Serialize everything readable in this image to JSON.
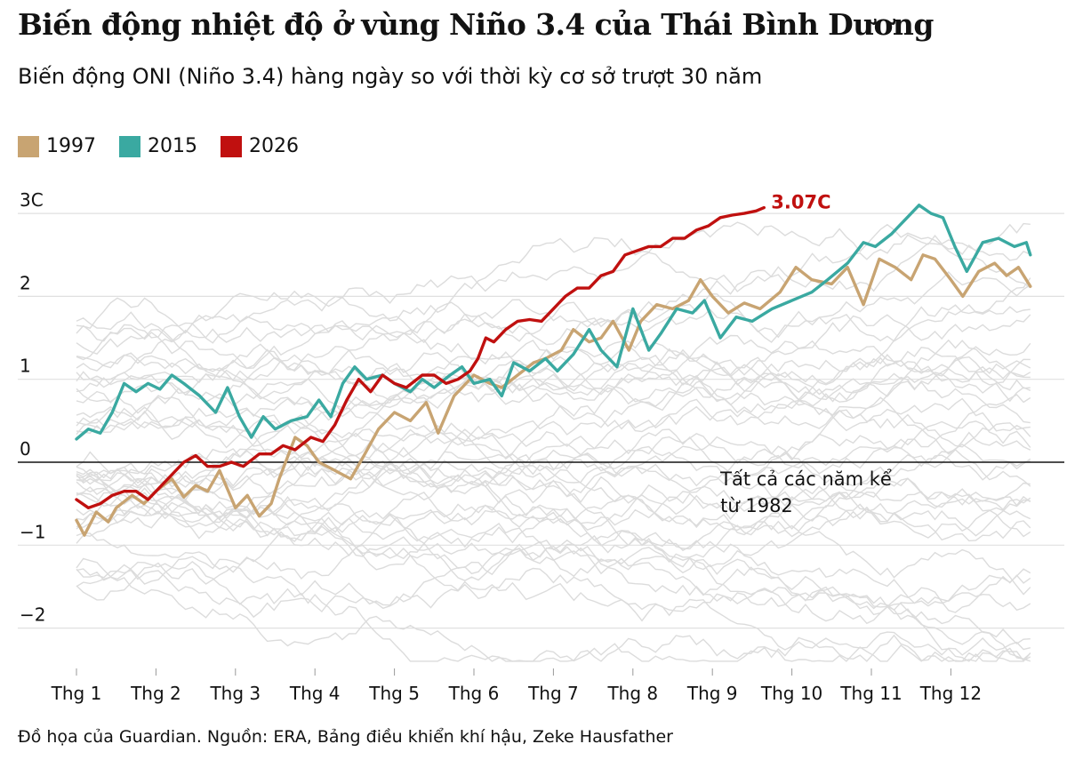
{
  "title": "Biến động nhiệt độ ở vùng Niño 3.4 của Thái Bình Dương",
  "subtitle": "Biến động ONI (Niño 3.4) hàng ngày so với thời kỳ cơ sở trượt 30 năm",
  "source": "Đồ họa của Guardian. Nguồn: ERA, Bảng điều khiển khí hậu, Zeke Hausfather",
  "colors": {
    "y1997": "#c8a472",
    "y2015": "#3aa9a1",
    "y2026": "#c0100f",
    "background_years": "#dcdcdc",
    "gridline": "#e0e0e0",
    "zero_line": "#121212"
  },
  "legend": [
    {
      "label": "1997",
      "color": "#c8a472"
    },
    {
      "label": "2015",
      "color": "#3aa9a1"
    },
    {
      "label": "2026",
      "color": "#c0100f"
    }
  ],
  "chart_data": {
    "type": "line",
    "x_unit": "month",
    "xlim": [
      1,
      13
    ],
    "ylim": [
      -2.4,
      3.3
    ],
    "y_ticks": [
      -2,
      -1,
      0,
      1,
      2,
      3
    ],
    "y_tick_labels": [
      "−2",
      "−1",
      "0",
      "1",
      "2",
      "3C"
    ],
    "x_ticks": [
      1,
      2,
      3,
      4,
      5,
      6,
      7,
      8,
      9,
      10,
      11,
      12
    ],
    "x_tick_labels": [
      "Thg 1",
      "Thg 2",
      "Thg 3",
      "Thg 4",
      "Thg 5",
      "Thg 6",
      "Thg 7",
      "Thg 8",
      "Thg 9",
      "Thg 10",
      "Thg 11",
      "Thg 12"
    ],
    "grid": true,
    "annotation": {
      "lines": [
        "Tất cả các năm kể",
        "từ 1982"
      ],
      "x": 9.1,
      "y": -0.28
    },
    "end_label": {
      "text": "3.07C",
      "series": "2026"
    },
    "series": [
      {
        "name": "1997",
        "x": [
          1.0,
          1.1,
          1.25,
          1.4,
          1.5,
          1.7,
          1.85,
          2.0,
          2.2,
          2.35,
          2.5,
          2.65,
          2.8,
          3.0,
          3.15,
          3.3,
          3.45,
          3.55,
          3.75,
          3.9,
          4.05,
          4.25,
          4.45,
          4.6,
          4.8,
          5.0,
          5.2,
          5.4,
          5.55,
          5.75,
          6.0,
          6.2,
          6.35,
          6.55,
          6.75,
          6.9,
          7.1,
          7.25,
          7.45,
          7.6,
          7.75,
          7.95,
          8.1,
          8.3,
          8.5,
          8.7,
          8.85,
          9.0,
          9.2,
          9.4,
          9.6,
          9.85,
          10.05,
          10.25,
          10.5,
          10.7,
          10.9,
          11.1,
          11.3,
          11.5,
          11.65,
          11.8,
          12.0,
          12.15,
          12.35,
          12.55,
          12.7,
          12.85,
          13.0
        ],
        "y": [
          -0.7,
          -0.88,
          -0.6,
          -0.72,
          -0.55,
          -0.4,
          -0.5,
          -0.35,
          -0.2,
          -0.42,
          -0.28,
          -0.35,
          -0.1,
          -0.55,
          -0.4,
          -0.65,
          -0.5,
          -0.2,
          0.3,
          0.2,
          0.0,
          -0.1,
          -0.2,
          0.05,
          0.4,
          0.6,
          0.5,
          0.72,
          0.35,
          0.8,
          1.05,
          0.95,
          0.9,
          1.05,
          1.2,
          1.25,
          1.35,
          1.6,
          1.45,
          1.5,
          1.7,
          1.35,
          1.7,
          1.9,
          1.85,
          1.95,
          2.2,
          2.0,
          1.8,
          1.92,
          1.85,
          2.05,
          2.35,
          2.2,
          2.15,
          2.35,
          1.9,
          2.45,
          2.35,
          2.2,
          2.5,
          2.45,
          2.2,
          2.0,
          2.3,
          2.4,
          2.25,
          2.35,
          2.12
        ]
      },
      {
        "name": "2015",
        "x": [
          1.0,
          1.15,
          1.3,
          1.45,
          1.6,
          1.75,
          1.9,
          2.05,
          2.2,
          2.35,
          2.55,
          2.75,
          2.9,
          3.05,
          3.2,
          3.35,
          3.5,
          3.7,
          3.9,
          4.05,
          4.2,
          4.35,
          4.5,
          4.65,
          4.85,
          5.0,
          5.2,
          5.35,
          5.5,
          5.7,
          5.85,
          6.0,
          6.2,
          6.35,
          6.5,
          6.7,
          6.9,
          7.05,
          7.25,
          7.45,
          7.6,
          7.8,
          8.0,
          8.2,
          8.35,
          8.55,
          8.75,
          8.9,
          9.1,
          9.3,
          9.5,
          9.75,
          10.0,
          10.25,
          10.45,
          10.7,
          10.9,
          11.05,
          11.25,
          11.4,
          11.6,
          11.75,
          11.9,
          12.05,
          12.2,
          12.4,
          12.6,
          12.8,
          12.95,
          13.0
        ],
        "y": [
          0.28,
          0.4,
          0.35,
          0.6,
          0.95,
          0.85,
          0.95,
          0.88,
          1.05,
          0.95,
          0.8,
          0.6,
          0.9,
          0.55,
          0.3,
          0.55,
          0.4,
          0.5,
          0.55,
          0.75,
          0.55,
          0.95,
          1.15,
          1.0,
          1.05,
          0.95,
          0.85,
          1.0,
          0.9,
          1.05,
          1.15,
          0.95,
          1.0,
          0.8,
          1.2,
          1.1,
          1.25,
          1.1,
          1.3,
          1.6,
          1.35,
          1.15,
          1.85,
          1.35,
          1.55,
          1.85,
          1.8,
          1.95,
          1.5,
          1.75,
          1.7,
          1.85,
          1.95,
          2.05,
          2.2,
          2.4,
          2.65,
          2.6,
          2.75,
          2.9,
          3.1,
          3.0,
          2.95,
          2.6,
          2.3,
          2.65,
          2.7,
          2.6,
          2.65,
          2.5
        ]
      },
      {
        "name": "2026",
        "x": [
          1.0,
          1.15,
          1.3,
          1.45,
          1.6,
          1.75,
          1.9,
          2.05,
          2.2,
          2.35,
          2.5,
          2.65,
          2.8,
          2.95,
          3.1,
          3.3,
          3.45,
          3.6,
          3.75,
          3.95,
          4.1,
          4.25,
          4.4,
          4.55,
          4.7,
          4.85,
          5.0,
          5.15,
          5.35,
          5.5,
          5.65,
          5.8,
          5.95,
          6.05,
          6.15,
          6.25,
          6.4,
          6.55,
          6.7,
          6.85,
          7.0,
          7.15,
          7.3,
          7.45,
          7.6,
          7.75,
          7.9,
          8.05,
          8.2,
          8.35,
          8.5,
          8.65,
          8.8,
          8.95,
          9.1,
          9.25,
          9.4,
          9.55,
          9.65
        ],
        "y": [
          -0.45,
          -0.55,
          -0.5,
          -0.4,
          -0.35,
          -0.35,
          -0.45,
          -0.3,
          -0.15,
          0.0,
          0.08,
          -0.05,
          -0.05,
          0.0,
          -0.05,
          0.1,
          0.1,
          0.2,
          0.15,
          0.3,
          0.25,
          0.45,
          0.75,
          1.0,
          0.85,
          1.05,
          0.95,
          0.9,
          1.05,
          1.05,
          0.95,
          1.0,
          1.1,
          1.25,
          1.5,
          1.45,
          1.6,
          1.7,
          1.72,
          1.7,
          1.85,
          2.0,
          2.1,
          2.1,
          2.25,
          2.3,
          2.5,
          2.55,
          2.6,
          2.6,
          2.7,
          2.7,
          2.8,
          2.85,
          2.95,
          2.98,
          3.0,
          3.03,
          3.07
        ]
      }
    ]
  }
}
